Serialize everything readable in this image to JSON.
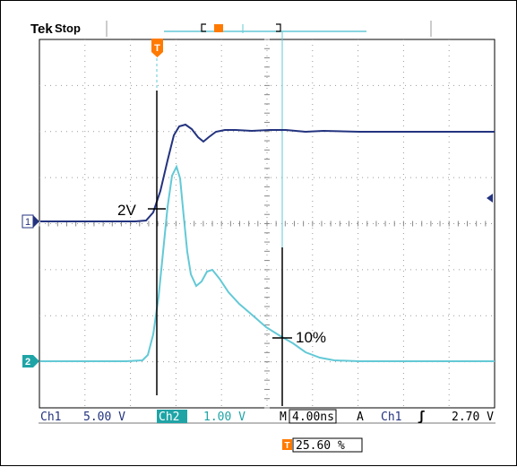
{
  "header": {
    "brand": "Tek",
    "status": "Stop"
  },
  "trigger_marker": "T",
  "channels": [
    {
      "id": "1",
      "color": "#23337f"
    },
    {
      "id": "2",
      "color": "#63c9d6"
    }
  ],
  "annotations": {
    "threshold_label": "2V",
    "percent_label": "10%"
  },
  "status_bar": {
    "ch1_label": "Ch1",
    "ch1_scale": "5.00 V",
    "ch2_label": "Ch2",
    "ch2_scale": "1.00 V",
    "timebase_label": "M",
    "timebase_value": "4.00ns",
    "trigger_mode": "A",
    "trigger_source": "Ch1",
    "trigger_slope": "ʃ",
    "trigger_level": "2.70 V"
  },
  "trigger_position": {
    "value": "25.60 %"
  },
  "colors": {
    "accent": "#ff7a00",
    "ch1": "#23337f",
    "ch2": "#63c9d6"
  }
}
